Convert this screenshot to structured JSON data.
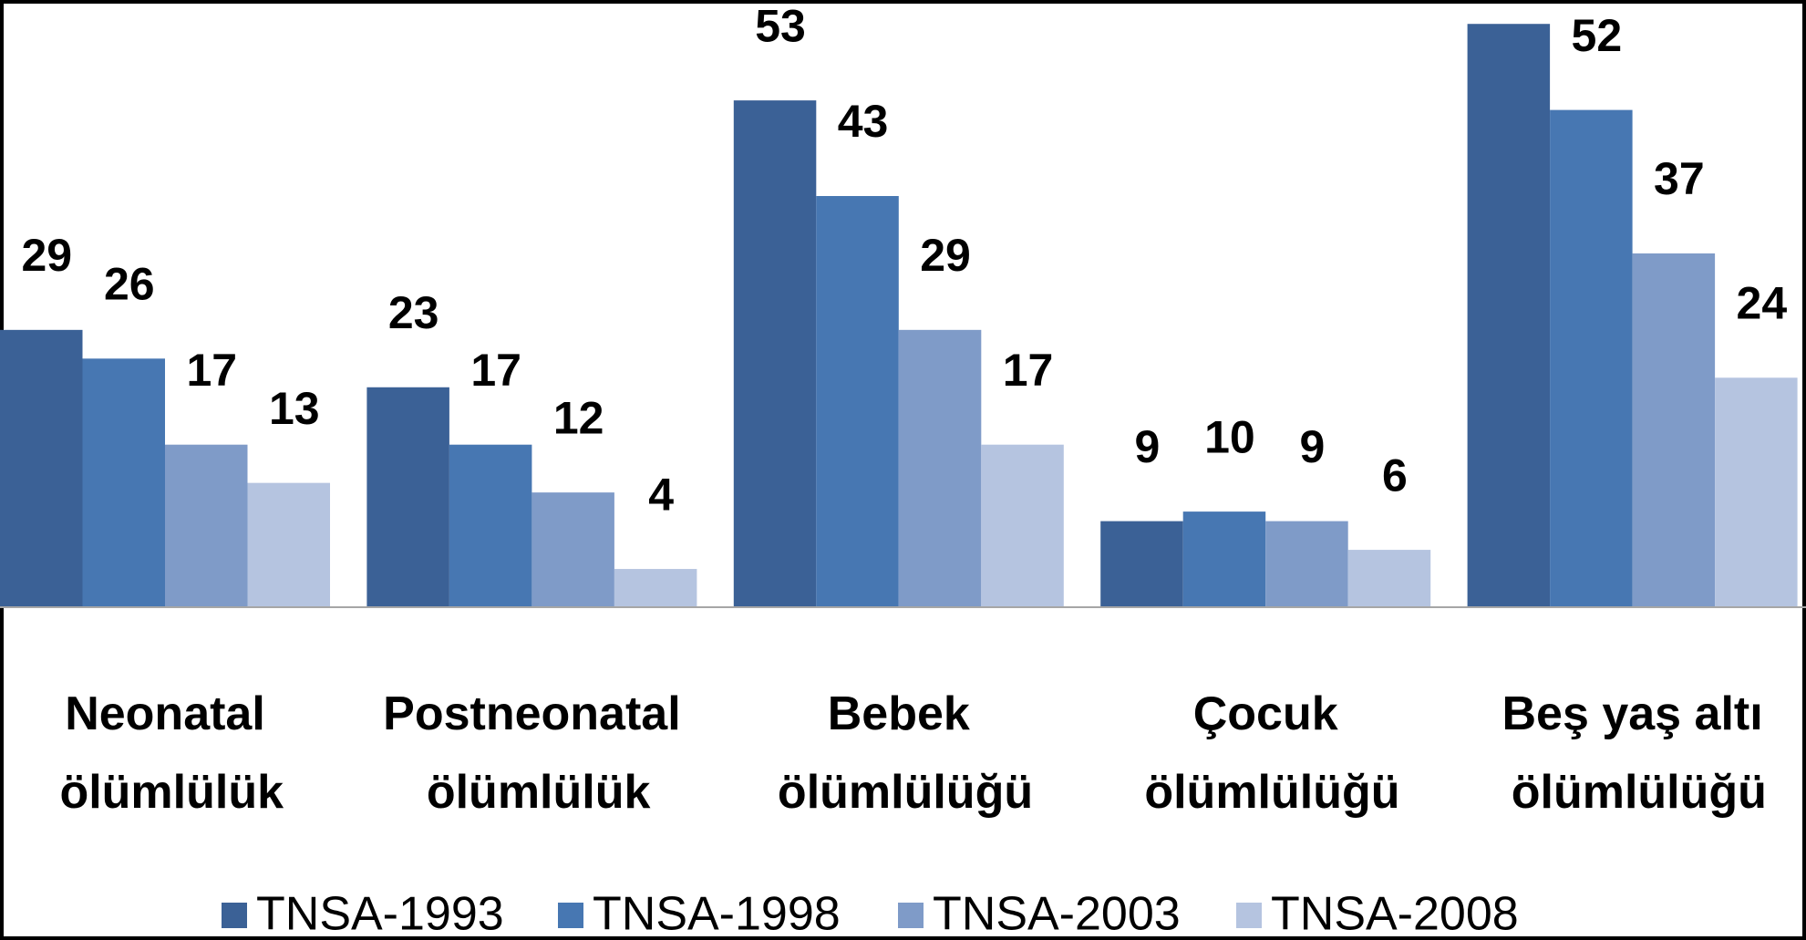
{
  "chart_data": {
    "type": "bar",
    "categories": [
      "Neonatal ölümlülük",
      "Postneonatal ölümlülük",
      "Bebek ölümlülüğü",
      "Çocuk ölümlülüğü",
      "Beş yaş altı ölümlülüğü"
    ],
    "series": [
      {
        "name": "TNSA-1993",
        "color": "#3b6196",
        "values": [
          29,
          23,
          53,
          9,
          61
        ],
        "value_labels": [
          "29",
          "23",
          "53",
          "9",
          null
        ]
      },
      {
        "name": "TNSA-1998",
        "color": "#4777b2",
        "values": [
          26,
          17,
          43,
          10,
          52
        ]
      },
      {
        "name": "TNSA-2003",
        "color": "#7f9bc8",
        "values": [
          17,
          12,
          29,
          9,
          37
        ]
      },
      {
        "name": "TNSA-2008",
        "color": "#b5c4e0",
        "values": [
          13,
          4,
          17,
          6,
          24
        ]
      }
    ],
    "ylim": [
      0,
      63.5
    ],
    "legend": "bottom"
  }
}
